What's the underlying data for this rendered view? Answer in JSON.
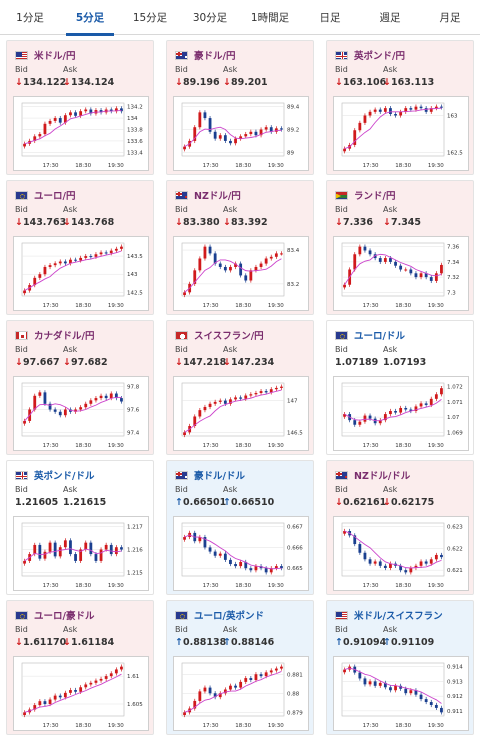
{
  "tabs": [
    {
      "label": "1分足",
      "active": false
    },
    {
      "label": "5分足",
      "active": true
    },
    {
      "label": "15分足",
      "active": false
    },
    {
      "label": "30分足",
      "active": false
    },
    {
      "label": "1時間足",
      "active": false
    },
    {
      "label": "日足",
      "active": false
    },
    {
      "label": "週足",
      "active": false
    },
    {
      "label": "月足",
      "active": false
    }
  ],
  "common": {
    "bid_label": "Bid",
    "ask_label": "Ask",
    "x_ticks": [
      "17:30",
      "18:30",
      "19:30"
    ]
  },
  "colors": {
    "down_bg": "#fbeded",
    "up_bg": "#eaf3fb",
    "down_arrow": "#d0191b",
    "up_arrow": "#1a5aa8",
    "candle_up": "#d0191b",
    "candle_down": "#1a3f8f",
    "ma": "#cc44cc"
  },
  "cards": [
    {
      "name": "米ドル/円",
      "flag": "us",
      "trend": "down",
      "bid": "134.122",
      "ask": "134.124",
      "y_ticks": [
        "134.2",
        "134",
        "133.8",
        "133.6",
        "133.4"
      ],
      "series": [
        133.55,
        133.6,
        133.68,
        133.72,
        133.9,
        133.95,
        134.0,
        133.92,
        134.05,
        134.1,
        134.04,
        134.12,
        134.15,
        134.08,
        134.14,
        134.1,
        134.15,
        134.12,
        134.17,
        134.12
      ]
    },
    {
      "name": "豪ドル/円",
      "flag": "au",
      "trend": "down",
      "bid": "89.196",
      "ask": "89.201",
      "y_ticks": [
        "89.4",
        "89.2",
        "89"
      ],
      "series": [
        89.05,
        89.1,
        89.22,
        89.35,
        89.3,
        89.18,
        89.12,
        89.15,
        89.1,
        89.08,
        89.12,
        89.14,
        89.16,
        89.18,
        89.15,
        89.2,
        89.22,
        89.18,
        89.21,
        89.2
      ]
    },
    {
      "name": "英ポンド/円",
      "flag": "uk",
      "trend": "down",
      "bid": "163.106",
      "ask": "163.113",
      "y_ticks": [
        "163",
        "162.5"
      ],
      "series": [
        162.55,
        162.6,
        162.8,
        162.9,
        163.0,
        163.05,
        163.08,
        163.05,
        163.1,
        163.02,
        163.0,
        163.05,
        163.1,
        163.08,
        163.12,
        163.1,
        163.05,
        163.1,
        163.12,
        163.11
      ]
    },
    {
      "name": "ユーロ/円",
      "flag": "eu",
      "trend": "down",
      "bid": "143.763",
      "ask": "143.768",
      "y_ticks": [
        "143.5",
        "143",
        "142.5"
      ],
      "series": [
        142.55,
        142.7,
        142.9,
        143.0,
        143.2,
        143.25,
        143.3,
        143.35,
        143.3,
        143.4,
        143.38,
        143.45,
        143.5,
        143.48,
        143.55,
        143.6,
        143.58,
        143.65,
        143.7,
        143.76
      ]
    },
    {
      "name": "NZドル/円",
      "flag": "nz",
      "trend": "down",
      "bid": "83.380",
      "ask": "83.392",
      "y_ticks": [
        "83.4",
        "83.2"
      ],
      "series": [
        83.15,
        83.2,
        83.28,
        83.35,
        83.42,
        83.38,
        83.32,
        83.3,
        83.28,
        83.3,
        83.32,
        83.25,
        83.22,
        83.28,
        83.3,
        83.32,
        83.35,
        83.36,
        83.38,
        83.38
      ]
    },
    {
      "name": "ランド/円",
      "flag": "za",
      "trend": "down",
      "bid": "7.336",
      "ask": "7.345",
      "y_ticks": [
        "7.36",
        "7.34",
        "7.32",
        "7.3"
      ],
      "series": [
        7.31,
        7.33,
        7.35,
        7.36,
        7.355,
        7.35,
        7.345,
        7.34,
        7.345,
        7.34,
        7.335,
        7.33,
        7.33,
        7.325,
        7.32,
        7.325,
        7.32,
        7.315,
        7.325,
        7.336
      ]
    },
    {
      "name": "カナダドル/円",
      "flag": "ca",
      "trend": "down",
      "bid": "97.667",
      "ask": "97.682",
      "y_ticks": [
        "97.8",
        "97.6",
        "97.4"
      ],
      "series": [
        97.5,
        97.6,
        97.72,
        97.75,
        97.65,
        97.6,
        97.58,
        97.55,
        97.6,
        97.58,
        97.6,
        97.62,
        97.65,
        97.68,
        97.7,
        97.72,
        97.7,
        97.74,
        97.7,
        97.67
      ]
    },
    {
      "name": "スイスフラン/円",
      "flag": "ch",
      "trend": "down",
      "bid": "147.218",
      "ask": "147.234",
      "y_ticks": [
        "147",
        "146.5"
      ],
      "series": [
        146.5,
        146.6,
        146.75,
        146.85,
        146.9,
        146.95,
        146.98,
        147.0,
        146.95,
        147.02,
        147.05,
        147.03,
        147.08,
        147.1,
        147.12,
        147.15,
        147.13,
        147.18,
        147.2,
        147.22
      ]
    },
    {
      "name": "ユーロ/ドル",
      "flag": "eu",
      "trend": "flat",
      "bid": "1.07189",
      "ask": "1.07193",
      "y_ticks": [
        "1.072",
        "1.071",
        "1.07",
        "1.069"
      ],
      "series": [
        1.0702,
        1.0698,
        1.0695,
        1.0697,
        1.0701,
        1.0699,
        1.0696,
        1.0698,
        1.0702,
        1.0704,
        1.0703,
        1.0706,
        1.0705,
        1.0704,
        1.0707,
        1.0709,
        1.0708,
        1.0712,
        1.0715,
        1.0719
      ]
    },
    {
      "name": "英ポンド/ドル",
      "flag": "uk",
      "trend": "flat",
      "bid": "1.21605",
      "ask": "1.21615",
      "y_ticks": [
        "1.217",
        "1.216",
        "1.215"
      ],
      "series": [
        1.2155,
        1.2158,
        1.2162,
        1.2156,
        1.2159,
        1.2163,
        1.2157,
        1.2161,
        1.2164,
        1.2158,
        1.2155,
        1.216,
        1.2163,
        1.2158,
        1.2155,
        1.216,
        1.2162,
        1.2158,
        1.2161,
        1.216
      ]
    },
    {
      "name": "豪ドル/ドル",
      "flag": "au",
      "trend": "up",
      "bid": "0.66501",
      "ask": "0.66510",
      "y_ticks": [
        "0.667",
        "0.666",
        "0.665"
      ],
      "series": [
        0.6665,
        0.6667,
        0.6663,
        0.6665,
        0.666,
        0.6658,
        0.6656,
        0.6657,
        0.6654,
        0.6652,
        0.6651,
        0.6653,
        0.665,
        0.6649,
        0.6651,
        0.665,
        0.6648,
        0.665,
        0.6651,
        0.665
      ]
    },
    {
      "name": "NZドル/ドル",
      "flag": "nz",
      "trend": "down",
      "bid": "0.62161",
      "ask": "0.62175",
      "y_ticks": [
        "0.623",
        "0.622",
        "0.621"
      ],
      "series": [
        0.6228,
        0.6226,
        0.6222,
        0.6218,
        0.6215,
        0.6213,
        0.6214,
        0.6212,
        0.6211,
        0.6213,
        0.6212,
        0.621,
        0.6209,
        0.6211,
        0.6212,
        0.6214,
        0.6213,
        0.6215,
        0.6217,
        0.6216
      ]
    },
    {
      "name": "ユーロ/豪ドル",
      "flag": "eu",
      "trend": "down",
      "bid": "1.61170",
      "ask": "1.61184",
      "y_ticks": [
        "1.61",
        "1.605"
      ],
      "series": [
        1.6035,
        1.604,
        1.6048,
        1.6055,
        1.605,
        1.6058,
        1.6065,
        1.6062,
        1.607,
        1.6075,
        1.6072,
        1.608,
        1.6085,
        1.6088,
        1.6092,
        1.6095,
        1.61,
        1.6105,
        1.6112,
        1.6117
      ]
    },
    {
      "name": "ユーロ/英ポンド",
      "flag": "eu",
      "trend": "up",
      "bid": "0.88138",
      "ask": "0.88146",
      "y_ticks": [
        "0.881",
        "0.88",
        "0.879"
      ],
      "series": [
        0.879,
        0.8792,
        0.8796,
        0.8801,
        0.8803,
        0.88,
        0.8798,
        0.88,
        0.8802,
        0.8804,
        0.8803,
        0.8806,
        0.8808,
        0.8807,
        0.881,
        0.8809,
        0.8811,
        0.8812,
        0.8813,
        0.8814
      ]
    },
    {
      "name": "米ドル/スイスフラン",
      "flag": "us",
      "trend": "up",
      "bid": "0.91094",
      "ask": "0.91109",
      "y_ticks": [
        "0.914",
        "0.913",
        "0.912",
        "0.911"
      ],
      "series": [
        0.9138,
        0.914,
        0.9136,
        0.9132,
        0.9128,
        0.913,
        0.9127,
        0.9129,
        0.9126,
        0.9124,
        0.9127,
        0.9125,
        0.9122,
        0.9124,
        0.9121,
        0.9118,
        0.9116,
        0.9114,
        0.9112,
        0.9109
      ]
    }
  ]
}
